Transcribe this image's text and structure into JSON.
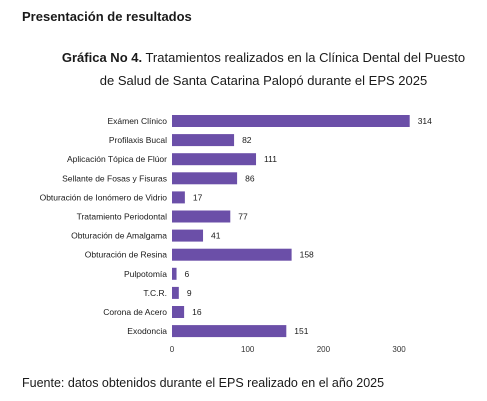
{
  "heading": "Presentación de resultados",
  "title": {
    "prefix": "Gráfica No 4.",
    "line1_rest": " Tratamientos realizados en la Clínica Dental del Puesto",
    "line2": "de Salud de Santa Catarina Palopó durante el EPS 2025"
  },
  "source": "Fuente: datos obtenidos durante el EPS realizado en el año 2025",
  "chart_data": {
    "type": "bar",
    "orientation": "horizontal",
    "categories": [
      "Exámen Clínico",
      "Profilaxis Bucal",
      "Aplicación Tópica de Flúor",
      "Sellante de Fosas y Fisuras",
      "Obturación de Ionómero de Vidrio",
      "Tratamiento Periodontal",
      "Obturación de Amalgama",
      "Obturación de Resina",
      "Pulpotomía",
      "T.C.R.",
      "Corona de Acero",
      "Exodoncia"
    ],
    "values": [
      314,
      82,
      111,
      86,
      17,
      77,
      41,
      158,
      6,
      9,
      16,
      151
    ],
    "xlim": [
      0,
      314
    ],
    "xticks": [
      0,
      100,
      200,
      300
    ],
    "data_labels": true,
    "grid": false,
    "legend": false,
    "bar_color": "#6b4fa8"
  }
}
